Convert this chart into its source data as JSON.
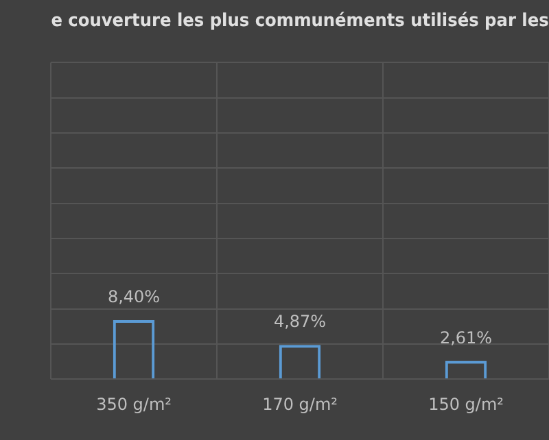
{
  "chart_data": {
    "type": "bar",
    "title": "e couverture les plus communéments utilisés par les",
    "categories": [
      "350 g/m²",
      "170 g/m²",
      "150 g/m²"
    ],
    "values": [
      8.4,
      4.87,
      2.61
    ],
    "value_labels": [
      "8,40%",
      "4,87%",
      "2,61%"
    ],
    "color": "#5b9bd5",
    "ylim": [
      0,
      45
    ],
    "tick_labels": "x",
    "grid": true,
    "legend": false
  }
}
